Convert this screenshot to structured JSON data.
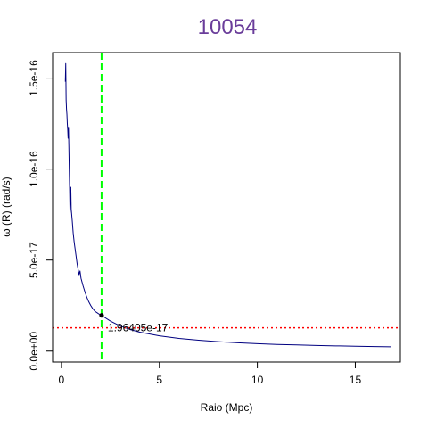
{
  "chart_data": {
    "type": "line",
    "title": "10054",
    "xlabel": "Raio (Mpc)",
    "ylabel": "ω (R) (rad/s)",
    "xlim": [
      -0.45,
      17.3
    ],
    "ylim": [
      -6e-18,
      1.64e-16
    ],
    "x_ticks": [
      0,
      5,
      10,
      15
    ],
    "x_tick_labels": [
      "0",
      "5",
      "10",
      "15"
    ],
    "y_ticks": [
      0,
      5e-17,
      1e-16,
      1.5e-16
    ],
    "y_tick_labels": [
      "0.0e+00",
      "5.0e-17",
      "1.0e-16",
      "1.5e-16"
    ],
    "grid": false,
    "series": [
      {
        "color": "#000080",
        "x": [
          0.2,
          0.22,
          0.24,
          0.26,
          0.28,
          0.3,
          0.32,
          0.34,
          0.36,
          0.38,
          0.4,
          0.42,
          0.44,
          0.46,
          0.48,
          0.5,
          0.55,
          0.6,
          0.65,
          0.7,
          0.75,
          0.8,
          0.85,
          0.9,
          0.95,
          1.0,
          1.1,
          1.2,
          1.3,
          1.4,
          1.5,
          1.6,
          1.7,
          1.8,
          1.9,
          2.05,
          2.5,
          3.0,
          3.5,
          4.0,
          5.0,
          6.0,
          7.0,
          8.0,
          9.0,
          10.0,
          11.0,
          12.0,
          13.0,
          14.0,
          15.0,
          16.0,
          16.8
        ],
        "y": [
          1.48e-16,
          1.58e-16,
          1.38e-16,
          1.33e-16,
          1.3e-16,
          1.25e-16,
          1.22e-16,
          1.17e-16,
          1.23e-16,
          1.12e-16,
          1e-16,
          8.8e-17,
          7.6e-17,
          8.5e-17,
          9e-17,
          7.8e-17,
          7.2e-17,
          6.5e-17,
          6e-17,
          5.6e-17,
          5.2e-17,
          4.8e-17,
          4.5e-17,
          4.2e-17,
          4.4e-17,
          4e-17,
          3.6e-17,
          3.25e-17,
          2.95e-17,
          2.7e-17,
          2.5e-17,
          2.33e-17,
          2.2e-17,
          2.12e-17,
          2.05e-17,
          1.96e-17,
          1.65e-17,
          1.38e-17,
          1.19e-17,
          1.04e-17,
          8.4e-18,
          7e-18,
          6e-18,
          5.2e-18,
          4.6e-18,
          4.1e-18,
          3.7e-18,
          3.4e-18,
          3.1e-18,
          2.9e-18,
          2.7e-18,
          2.5e-18,
          2.4e-18
        ]
      }
    ],
    "reference_lines": {
      "vertical": {
        "x": 2.05,
        "color": "#00ff00",
        "style": "dashed"
      },
      "horizontal": {
        "y": 1.28e-17,
        "color": "#ff0000",
        "style": "dotted"
      }
    },
    "marker": {
      "x": 2.05,
      "y": 1.96405e-17,
      "label": "1.96405e-17",
      "color": "#000000"
    }
  },
  "colors": {
    "title": "#6a3d9a",
    "line": "#000080",
    "vline": "#00ff00",
    "hline": "#ff0000"
  }
}
